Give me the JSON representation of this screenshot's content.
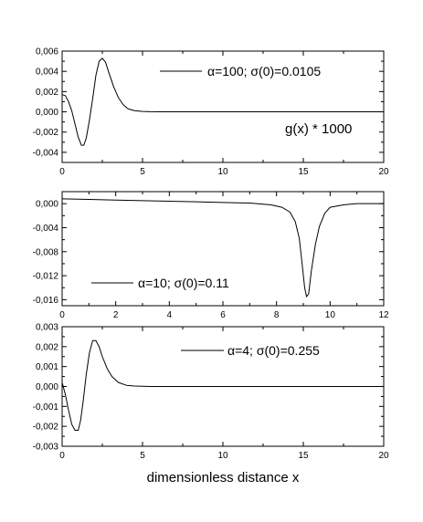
{
  "chart_data": [
    {
      "type": "line",
      "title": "",
      "xlabel": "",
      "ylabel": "",
      "xlim": [
        0,
        20
      ],
      "ylim": [
        -0.005,
        0.006
      ],
      "x_ticks": [
        0,
        5,
        10,
        15,
        20
      ],
      "x_tick_labels": [
        "0",
        "5",
        "10",
        "15",
        "20"
      ],
      "y_ticks": [
        -0.004,
        -0.002,
        0.0,
        0.002,
        0.004,
        0.006
      ],
      "y_tick_labels": [
        "-0,004",
        "-0,002",
        "0,000",
        "0,002",
        "0,004",
        "0,006"
      ],
      "legend": "top-right",
      "grid": false,
      "annotation": "g(x) * 1000",
      "series": [
        {
          "name": "α=100; σ(0)=0.0105",
          "x": [
            0,
            0.2,
            0.4,
            0.6,
            0.8,
            1.0,
            1.2,
            1.35,
            1.5,
            1.7,
            1.9,
            2.1,
            2.3,
            2.5,
            2.7,
            2.9,
            3.2,
            3.5,
            3.8,
            4.1,
            4.5,
            5.0,
            5.5,
            6.0,
            7.0,
            10,
            15,
            20
          ],
          "y": [
            0.0017,
            0.0016,
            0.001,
            0.0001,
            -0.0012,
            -0.0025,
            -0.0033,
            -0.0033,
            -0.0026,
            -0.0008,
            0.0013,
            0.0036,
            0.005,
            0.0053,
            0.0049,
            0.0039,
            0.0025,
            0.0014,
            0.0007,
            0.0003,
            0.00012,
            4e-05,
            1e-05,
            0.0,
            0.0,
            0.0,
            0.0,
            0.0
          ]
        }
      ]
    },
    {
      "type": "line",
      "title": "",
      "xlabel": "",
      "ylabel": "",
      "xlim": [
        0,
        12
      ],
      "ylim": [
        -0.017,
        0.002
      ],
      "x_ticks": [
        0,
        2,
        4,
        6,
        8,
        10,
        12
      ],
      "x_tick_labels": [
        "0",
        "2",
        "4",
        "6",
        "8",
        "10",
        "12"
      ],
      "y_ticks": [
        -0.016,
        -0.012,
        -0.008,
        -0.004,
        0.0
      ],
      "y_tick_labels": [
        "-0,016",
        "-0,012",
        "-0,008",
        "-0,004",
        "0,000"
      ],
      "legend": "bottom-left",
      "grid": false,
      "series": [
        {
          "name": "α=10; σ(0)=0.11",
          "x": [
            0,
            1,
            2,
            3,
            4,
            5,
            6,
            7,
            7.8,
            8.2,
            8.5,
            8.7,
            8.85,
            8.95,
            9.05,
            9.12,
            9.2,
            9.3,
            9.45,
            9.6,
            9.8,
            10.0,
            10.5,
            11,
            12
          ],
          "y": [
            0.0008,
            0.0007,
            0.0006,
            0.0005,
            0.0004,
            0.0003,
            0.0002,
            0.0001,
            -0.0002,
            -0.0006,
            -0.0014,
            -0.003,
            -0.0058,
            -0.0098,
            -0.014,
            -0.0155,
            -0.015,
            -0.0112,
            -0.0068,
            -0.0038,
            -0.0016,
            -0.0006,
            -0.0002,
            0.0,
            0.0
          ]
        }
      ]
    },
    {
      "type": "line",
      "title": "",
      "xlabel": "dimensionless distance x",
      "ylabel": "",
      "xlim": [
        0,
        20
      ],
      "ylim": [
        -0.003,
        0.003
      ],
      "x_ticks": [
        0,
        5,
        10,
        15,
        20
      ],
      "x_tick_labels": [
        "0",
        "5",
        "10",
        "15",
        "20"
      ],
      "y_ticks": [
        -0.003,
        -0.002,
        -0.001,
        0.0,
        0.001,
        0.002,
        0.003
      ],
      "y_tick_labels": [
        "-0,003",
        "-0,002",
        "-0,001",
        "0,000",
        "0,001",
        "0,002",
        "0,003"
      ],
      "legend": "top-right",
      "grid": false,
      "series": [
        {
          "name": "α=4; σ(0)=0.255",
          "x": [
            0,
            0.2,
            0.4,
            0.6,
            0.8,
            1.0,
            1.15,
            1.3,
            1.5,
            1.7,
            1.9,
            2.1,
            2.3,
            2.5,
            2.8,
            3.1,
            3.5,
            4.0,
            4.5,
            5.0,
            5.5,
            6.0,
            7,
            10,
            15,
            20
          ],
          "y": [
            0.0002,
            -0.0004,
            -0.0012,
            -0.0019,
            -0.0022,
            -0.0022,
            -0.0017,
            -0.0008,
            0.0006,
            0.0017,
            0.0023,
            0.0023,
            0.002,
            0.0015,
            0.0009,
            0.0005,
            0.0002,
            6e-05,
            2e-05,
            1e-05,
            0.0,
            0.0,
            0.0,
            0.0,
            0.0,
            0.0
          ]
        }
      ]
    }
  ]
}
